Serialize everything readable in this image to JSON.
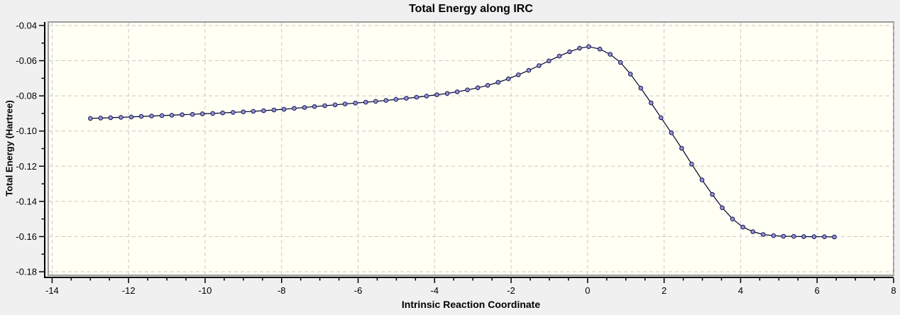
{
  "chart_data": {
    "type": "line",
    "title": "Total Energy along IRC",
    "xlabel": "Intrinsic Reaction Coordinate",
    "ylabel": "Total Energy (Hartree)",
    "xlim": [
      -14.1,
      8.0
    ],
    "ylim_top": -0.038,
    "ylim_bottom": -0.182,
    "x_ticks": [
      -14,
      -12,
      -10,
      -8,
      -6,
      -4,
      -2,
      0,
      2,
      4,
      6,
      8
    ],
    "x_tick_labels": [
      "-14",
      "-12",
      "-10",
      "-8",
      "-6",
      "-4",
      "-2",
      "0",
      "2",
      "4",
      "6",
      "8"
    ],
    "x_minor_step": 0.5,
    "y_ticks": [
      -0.04,
      -0.06,
      -0.08,
      -0.1,
      -0.12,
      -0.14,
      -0.16,
      -0.18
    ],
    "y_tick_labels": [
      "-0.04",
      "-0.06",
      "-0.08",
      "-0.10",
      "-0.12",
      "-0.14",
      "-0.16",
      "-0.18"
    ],
    "y_minor_step": 0.01,
    "grid": "dashed-major",
    "legend": "none",
    "marker": "circle",
    "points": [
      [
        -13.0,
        -0.0928
      ],
      [
        -12.73,
        -0.0926
      ],
      [
        -12.47,
        -0.0924
      ],
      [
        -12.2,
        -0.0922
      ],
      [
        -11.93,
        -0.092
      ],
      [
        -11.67,
        -0.0917
      ],
      [
        -11.4,
        -0.0915
      ],
      [
        -11.13,
        -0.0912
      ],
      [
        -10.87,
        -0.091
      ],
      [
        -10.6,
        -0.0907
      ],
      [
        -10.33,
        -0.0905
      ],
      [
        -10.07,
        -0.0902
      ],
      [
        -9.8,
        -0.09
      ],
      [
        -9.54,
        -0.0897
      ],
      [
        -9.27,
        -0.0894
      ],
      [
        -9.0,
        -0.0891
      ],
      [
        -8.74,
        -0.0888
      ],
      [
        -8.47,
        -0.0884
      ],
      [
        -8.2,
        -0.088
      ],
      [
        -7.94,
        -0.0876
      ],
      [
        -7.67,
        -0.0871
      ],
      [
        -7.4,
        -0.0866
      ],
      [
        -7.14,
        -0.0861
      ],
      [
        -6.87,
        -0.0856
      ],
      [
        -6.6,
        -0.0851
      ],
      [
        -6.34,
        -0.0846
      ],
      [
        -6.07,
        -0.0841
      ],
      [
        -5.8,
        -0.0836
      ],
      [
        -5.54,
        -0.0831
      ],
      [
        -5.27,
        -0.0826
      ],
      [
        -5.01,
        -0.082
      ],
      [
        -4.74,
        -0.0814
      ],
      [
        -4.47,
        -0.0808
      ],
      [
        -4.21,
        -0.0801
      ],
      [
        -3.94,
        -0.0794
      ],
      [
        -3.67,
        -0.0786
      ],
      [
        -3.41,
        -0.0777
      ],
      [
        -3.14,
        -0.0766
      ],
      [
        -2.87,
        -0.0754
      ],
      [
        -2.61,
        -0.074
      ],
      [
        -2.34,
        -0.0723
      ],
      [
        -2.07,
        -0.0703
      ],
      [
        -1.81,
        -0.068
      ],
      [
        -1.54,
        -0.0655
      ],
      [
        -1.27,
        -0.0628
      ],
      [
        -1.01,
        -0.0601
      ],
      [
        -0.74,
        -0.0574
      ],
      [
        -0.47,
        -0.0549
      ],
      [
        -0.21,
        -0.0529
      ],
      [
        0.03,
        -0.052
      ],
      [
        0.32,
        -0.0534
      ],
      [
        0.59,
        -0.0564
      ],
      [
        0.86,
        -0.061
      ],
      [
        1.12,
        -0.0676
      ],
      [
        1.39,
        -0.0756
      ],
      [
        1.66,
        -0.084
      ],
      [
        1.92,
        -0.0924
      ],
      [
        2.19,
        -0.101
      ],
      [
        2.46,
        -0.1098
      ],
      [
        2.72,
        -0.1188
      ],
      [
        2.99,
        -0.1278
      ],
      [
        3.26,
        -0.136
      ],
      [
        3.52,
        -0.1436
      ],
      [
        3.79,
        -0.15
      ],
      [
        4.06,
        -0.1546
      ],
      [
        4.32,
        -0.1572
      ],
      [
        4.59,
        -0.1588
      ],
      [
        4.86,
        -0.1595
      ],
      [
        5.12,
        -0.1598
      ],
      [
        5.39,
        -0.1599
      ],
      [
        5.65,
        -0.16
      ],
      [
        5.92,
        -0.1601
      ],
      [
        6.19,
        -0.1601
      ],
      [
        6.45,
        -0.1602
      ]
    ],
    "colors": {
      "page_bg": "#f0f0f0",
      "plot_bg": "#fffff4",
      "plot_border": "#9c9c9c",
      "gridline": "#c9c9c9",
      "axis": "#000000",
      "tick_label": "#000000",
      "line": "#00002a",
      "marker_fill": "#9393d2",
      "marker_stroke": "#151553"
    }
  }
}
